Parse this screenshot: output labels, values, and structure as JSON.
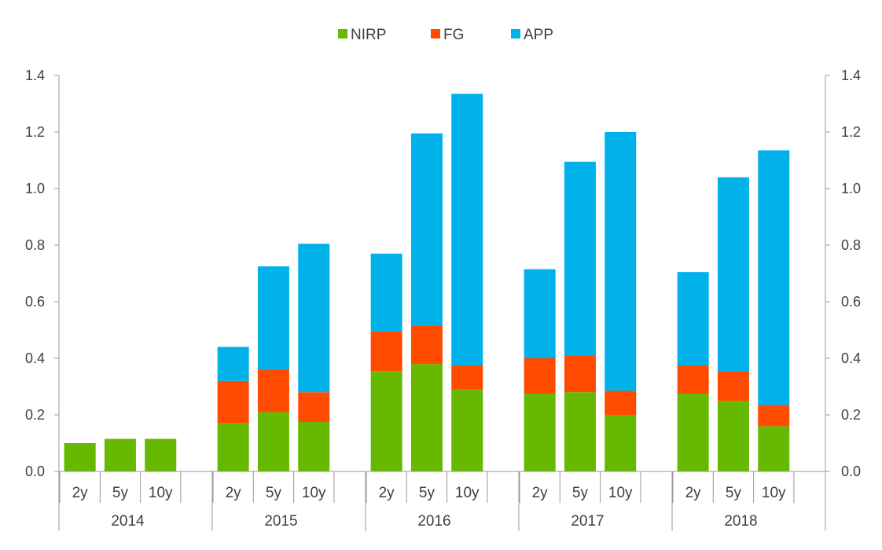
{
  "chart_data": {
    "type": "bar",
    "stacked": true,
    "title": "",
    "xlabel": "",
    "ylabel": "",
    "ylim": [
      0,
      1.4
    ],
    "y_ticks": [
      "0.0",
      "0.2",
      "0.4",
      "0.6",
      "0.8",
      "1.0",
      "1.2",
      "1.4"
    ],
    "secondary_y_ticks": [
      "0.0",
      "0.2",
      "0.4",
      "0.6",
      "0.8",
      "1.0",
      "1.2",
      "1.4"
    ],
    "legend_position": "top-center",
    "groups": [
      "2014",
      "2015",
      "2016",
      "2017",
      "2018"
    ],
    "maturities": [
      "2y",
      "5y",
      "10y"
    ],
    "categories": [
      "2014 2y",
      "2014 5y",
      "2014 10y",
      "2015 2y",
      "2015 5y",
      "2015 10y",
      "2016 2y",
      "2016 5y",
      "2016 10y",
      "2017 2y",
      "2017 5y",
      "2017 10y",
      "2018 2y",
      "2018 5y",
      "2018 10y"
    ],
    "series": [
      {
        "name": "NIRP",
        "color": "#66B800",
        "values": [
          0.1,
          0.115,
          0.115,
          0.17,
          0.21,
          0.175,
          0.355,
          0.38,
          0.29,
          0.275,
          0.28,
          0.2,
          0.275,
          0.25,
          0.16
        ]
      },
      {
        "name": "FG",
        "color": "#FF4B00",
        "values": [
          0,
          0,
          0,
          0.15,
          0.15,
          0.105,
          0.14,
          0.135,
          0.085,
          0.125,
          0.13,
          0.085,
          0.1,
          0.105,
          0.075
        ]
      },
      {
        "name": "APP",
        "color": "#00B1EA",
        "values": [
          0,
          0,
          0,
          0.12,
          0.365,
          0.525,
          0.275,
          0.68,
          0.96,
          0.315,
          0.685,
          0.915,
          0.33,
          0.685,
          0.9
        ]
      }
    ]
  }
}
